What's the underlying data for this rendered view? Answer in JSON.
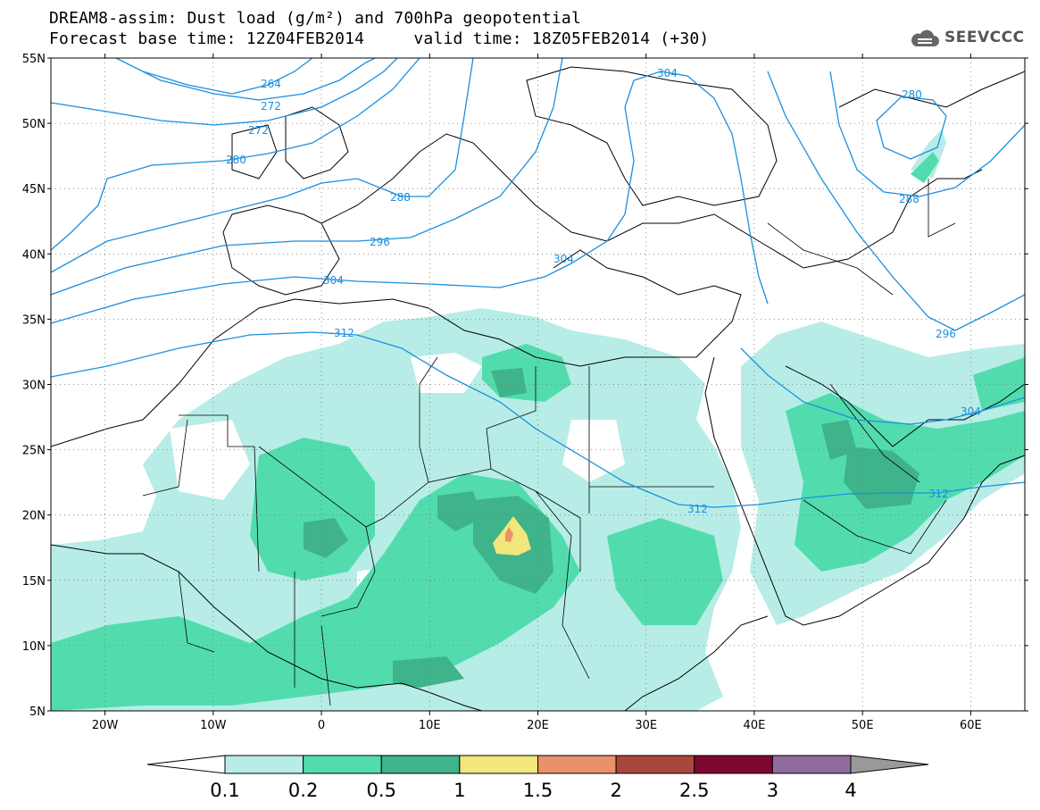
{
  "header": {
    "title_line1": "DREAM8-assim: Dust load (g/m²) and 700hPa geopotential",
    "title_line2": "Forecast base time: 12Z04FEB2014     valid time: 18Z05FEB2014 (+30)",
    "logo_text": "SEEVCCC"
  },
  "map": {
    "lon_range": [
      -25,
      65
    ],
    "lat_range": [
      5,
      55
    ],
    "lat_ticks": [
      "55N",
      "50N",
      "45N",
      "40N",
      "35N",
      "30N",
      "25N",
      "20N",
      "15N",
      "10N",
      "5N"
    ],
    "lon_ticks": [
      "20W",
      "10W",
      "0",
      "10E",
      "20E",
      "30E",
      "40E",
      "50E",
      "60E"
    ],
    "contour_color": "#1a8fe0",
    "contour_labels": [
      "264",
      "272",
      "272",
      "280",
      "288",
      "296",
      "304",
      "304",
      "312",
      "312",
      "280",
      "288",
      "296",
      "304",
      "312"
    ]
  },
  "colorbar": {
    "labels": [
      "0.1",
      "0.2",
      "0.5",
      "1",
      "1.5",
      "2",
      "2.5",
      "3",
      "4"
    ],
    "colors": [
      "#b7ede6",
      "#52dcae",
      "#3fb38a",
      "#f2e67c",
      "#e8916a",
      "#a9473c",
      "#7e0631",
      "#8f6c9c",
      "#999999"
    ]
  }
}
